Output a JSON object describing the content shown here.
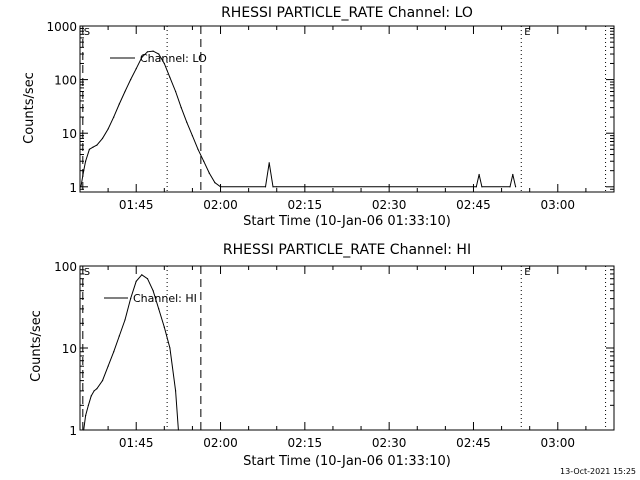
{
  "footer": {
    "timestamp": "13-Oct-2021 15:25"
  },
  "chart_data": [
    {
      "type": "line",
      "title": "RHESSI PARTICLE_RATE Channel: LO",
      "xlabel": "Start Time (10-Jan-06 01:33:10)",
      "ylabel": "Counts/sec",
      "yscale": "log",
      "xlim": [
        "01:35",
        "03:10"
      ],
      "ylim": [
        0.8,
        1000
      ],
      "x_ticks": [
        "01:45",
        "02:00",
        "02:15",
        "02:30",
        "02:45",
        "03:00"
      ],
      "y_ticks": [
        "1",
        "10",
        "100",
        "1000"
      ],
      "legend": {
        "position": "top-left",
        "entries": [
          "Channel: LO"
        ]
      },
      "markers": {
        "start_label": "S",
        "end_label": "E",
        "dashed_lines": [
          "01:35:30",
          "01:56:30"
        ],
        "dotted_lines": [
          "01:50:30",
          "02:53:30",
          "03:08:30"
        ],
        "end_line": "02:53:30"
      },
      "series": [
        {
          "name": "Channel: LO",
          "x": [
            "01:35:10",
            "01:35:40",
            "01:36:00",
            "01:36:40",
            "01:37:20",
            "01:38:00",
            "01:39:00",
            "01:40:00",
            "01:41:00",
            "01:42:00",
            "01:43:00",
            "01:44:00",
            "01:45:00",
            "01:46:00",
            "01:47:00",
            "01:48:00",
            "01:49:00",
            "01:50:00",
            "01:51:00",
            "01:52:00",
            "01:53:00",
            "01:54:00",
            "01:55:00",
            "01:56:00",
            "01:57:00",
            "01:58:00",
            "01:59:00",
            "02:00:00",
            "02:08:00",
            "02:08:40",
            "02:09:20",
            "02:10:00",
            "02:45:30",
            "02:46:00",
            "02:46:30",
            "02:51:30",
            "02:52:00",
            "02:52:30"
          ],
          "y": [
            1,
            2,
            3,
            5,
            5.5,
            6,
            8,
            12,
            20,
            35,
            60,
            100,
            160,
            260,
            330,
            340,
            300,
            200,
            110,
            60,
            30,
            16,
            9,
            5,
            3,
            1.8,
            1.2,
            1,
            1,
            2.8,
            1,
            1,
            1,
            1.7,
            1,
            1,
            1.7,
            1
          ]
        }
      ]
    },
    {
      "type": "line",
      "title": "RHESSI PARTICLE_RATE Channel: HI",
      "xlabel": "Start Time (10-Jan-06 01:33:10)",
      "ylabel": "Counts/sec",
      "yscale": "log",
      "xlim": [
        "01:35",
        "03:10"
      ],
      "ylim": [
        1,
        100
      ],
      "x_ticks": [
        "01:45",
        "02:00",
        "02:15",
        "02:30",
        "02:45",
        "03:00"
      ],
      "y_ticks": [
        "1",
        "10",
        "100"
      ],
      "legend": {
        "position": "top-left",
        "entries": [
          "Channel: HI"
        ]
      },
      "markers": {
        "start_label": "S",
        "end_label": "E",
        "dashed_lines": [
          "01:35:30",
          "01:56:30"
        ],
        "dotted_lines": [
          "01:50:30",
          "02:53:30",
          "03:08:30"
        ],
        "end_line": "02:53:30"
      },
      "series": [
        {
          "name": "Channel: HI",
          "x": [
            "01:35:40",
            "01:36:00",
            "01:36:30",
            "01:37:00",
            "01:37:30",
            "01:38:00",
            "01:39:00",
            "01:40:00",
            "01:41:00",
            "01:42:00",
            "01:43:00",
            "01:44:00",
            "01:45:00",
            "01:46:00",
            "01:47:00",
            "01:48:00",
            "01:49:00",
            "01:50:00",
            "01:51:00",
            "01:52:00",
            "01:52:30"
          ],
          "y": [
            1,
            1.5,
            2,
            2.6,
            3,
            3.2,
            4,
            6,
            9,
            14,
            22,
            40,
            65,
            78,
            70,
            50,
            30,
            18,
            10,
            3,
            1
          ]
        }
      ]
    }
  ]
}
